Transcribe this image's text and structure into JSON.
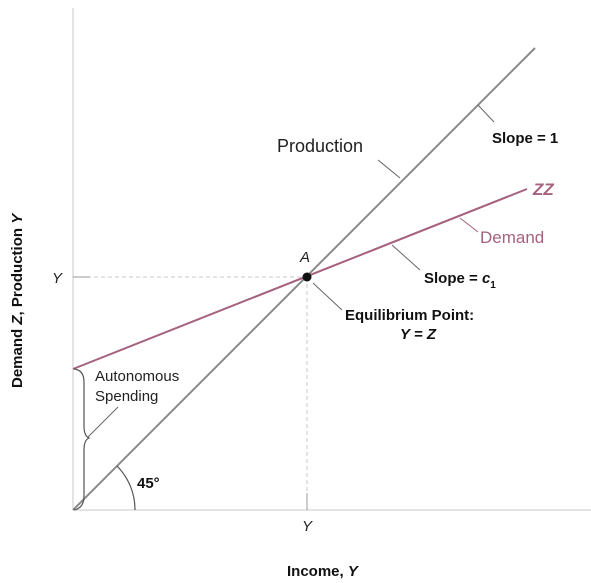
{
  "axes": {
    "y_label_prefix": "Demand ",
    "y_label_z": "Z",
    "y_label_mid": ", Production ",
    "y_label_y": "Y",
    "x_label_prefix": "Income, ",
    "x_label_y": "Y",
    "y_tick": "Y",
    "x_tick": "Y"
  },
  "lines": {
    "production_label": "Production",
    "slope_one_label": "Slope = 1",
    "zz_label": "ZZ",
    "demand_label": "Demand",
    "slope_c_prefix": "Slope = ",
    "slope_c_letter": "c",
    "slope_c_sub": "1"
  },
  "equilibrium": {
    "point_label": "A",
    "title": "Equilibrium Point:",
    "equation": "Y = Z"
  },
  "annotations": {
    "autonomous_line1": "Autonomous",
    "autonomous_line2": "Spending",
    "angle_label": "45°"
  },
  "colors": {
    "production": "#8a8a8a",
    "demand": "#a5617f",
    "axis": "#c8c8c8",
    "text": "#222222"
  }
}
